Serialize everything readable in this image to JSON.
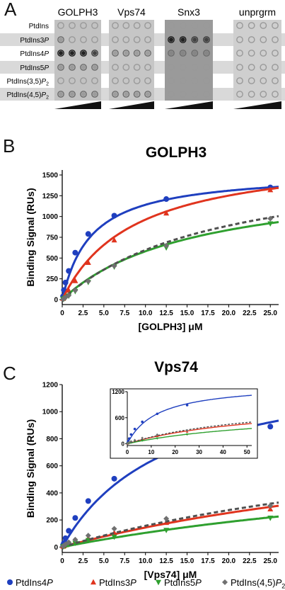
{
  "panel_letters": [
    "A",
    "B",
    "C"
  ],
  "panel_a": {
    "columns": [
      "GOLPH3",
      "Vps74",
      "Snx3",
      "unprgrm"
    ],
    "rows": [
      "PtdIns",
      "PtdIns3P",
      "PtdIns4P",
      "PtdIns5P",
      "PtdIns(3,5)P2",
      "PtdIns(4,5)P2"
    ],
    "colors": {
      "membrane": "#b8b8b8",
      "dot_light": "#8c8c8c",
      "dot_dark": "#202020",
      "row_band": "#d9d9d9"
    }
  },
  "legend": [
    {
      "name": "PtdIns4P",
      "color": "#1f3fbf",
      "marker": "circle"
    },
    {
      "name": "PtdIns3P",
      "color": "#e0341e",
      "marker": "triangle-up"
    },
    {
      "name": "PtdIns5P",
      "color": "#2fa02f",
      "marker": "triangle-down"
    },
    {
      "name": "PtdIns(4,5)P2",
      "color": "#707070",
      "marker": "diamond"
    }
  ],
  "chart_data": [
    {
      "type": "scatter",
      "title": "GOLPH3",
      "xlabel": "[GOLPH3] μM",
      "ylabel": "Binding Signal (RUs)",
      "xlim": [
        0,
        26
      ],
      "ylim": [
        -60,
        1560
      ],
      "xticks": [
        "0",
        "2.5",
        "5.0",
        "7.5",
        "10.0",
        "12.5",
        "15.0",
        "17.5",
        "20.0",
        "22.5",
        "25.0"
      ],
      "yticks": [
        "0",
        "250",
        "500",
        "750",
        "1000",
        "1250",
        "1500"
      ],
      "x": [
        0.1,
        0.2,
        0.39,
        0.78,
        1.56,
        3.125,
        6.25,
        12.5,
        25.0
      ],
      "series": [
        {
          "name": "PtdIns4P",
          "values": [
            40,
            115,
            205,
            345,
            565,
            790,
            1010,
            1210,
            1350
          ],
          "fit": {
            "bmax": 1540,
            "kd": 3.5,
            "dash": false
          }
        },
        {
          "name": "PtdIns3P",
          "values": [
            12,
            25,
            50,
            110,
            225,
            445,
            715,
            1040,
            1320
          ],
          "fit": {
            "bmax": 1790,
            "kd": 8.6,
            "dash": false
          }
        },
        {
          "name": "PtdIns5P",
          "values": [
            5,
            10,
            22,
            45,
            100,
            210,
            395,
            625,
            915
          ],
          "fit": {
            "bmax": 1500,
            "kd": 15.8,
            "dash": false
          }
        },
        {
          "name": "PtdIns(4,5)P2",
          "values": [
            5,
            12,
            25,
            50,
            110,
            220,
            405,
            650,
            975
          ],
          "fit": {
            "bmax": 1750,
            "kd": 19.3,
            "dash": true
          }
        }
      ]
    },
    {
      "type": "scatter",
      "title": "Vps74",
      "xlabel": "[Vps74] μM",
      "ylabel": "Binding Signal (RUs)",
      "xlim": [
        0,
        26
      ],
      "ylim": [
        -40,
        1200
      ],
      "xticks": [
        "0",
        "2.5",
        "5.0",
        "7.5",
        "10.0",
        "12.5",
        "15.0",
        "17.5",
        "20.0",
        "22.5",
        "25.0"
      ],
      "yticks": [
        "0",
        "200",
        "400",
        "600",
        "800",
        "1000",
        "1200"
      ],
      "x": [
        0.1,
        0.2,
        0.39,
        0.78,
        1.56,
        3.125,
        6.25,
        12.5,
        25.0
      ],
      "series": [
        {
          "name": "PtdIns4P",
          "values": [
            15,
            30,
            65,
            120,
            215,
            340,
            505,
            690,
            890
          ],
          "fit": {
            "bmax": 1390,
            "kd": 12.7,
            "dash": false
          }
        },
        {
          "name": "PtdIns3P",
          "values": [
            5,
            8,
            15,
            25,
            40,
            65,
            105,
            180,
            280
          ],
          "fit": {
            "bmax": 1000,
            "kd": 59.3,
            "dash": false
          }
        },
        {
          "name": "PtdIns5P",
          "values": [
            3,
            6,
            12,
            20,
            30,
            50,
            75,
            125,
            215
          ],
          "fit": {
            "bmax": 800,
            "kd": 66.2,
            "dash": false
          }
        },
        {
          "name": "PtdIns(4,5)P2",
          "values": [
            6,
            10,
            20,
            35,
            55,
            85,
            135,
            210,
            305
          ],
          "fit": {
            "bmax": 1050,
            "kd": 57.0,
            "dash": true
          }
        }
      ],
      "inset": {
        "xlim": [
          0,
          52
        ],
        "ylim": [
          -40,
          1200
        ],
        "xticks": [
          "0",
          "10",
          "20",
          "30",
          "40",
          "50"
        ],
        "yticks": [
          "0",
          "600",
          "1200"
        ]
      }
    }
  ]
}
